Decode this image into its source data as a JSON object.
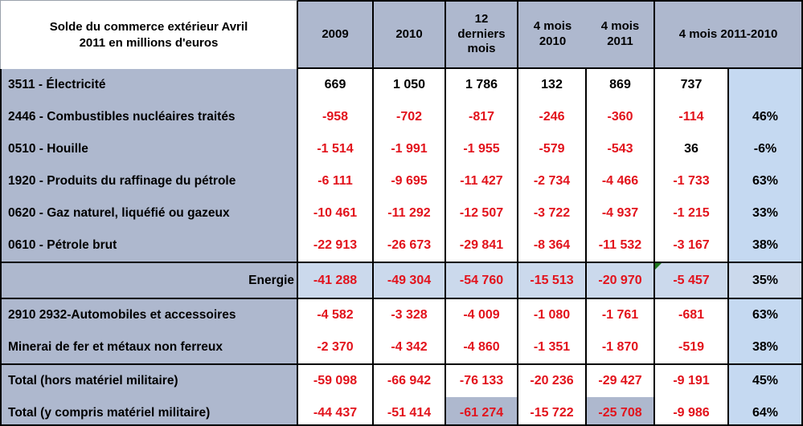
{
  "colors": {
    "label_fill": "#aeb8ce",
    "percent_fill": "#c5d9f1",
    "energy_fill": "#cbd9ec",
    "highlight_fill": "#aeb8ce",
    "negative": "#e2131c",
    "positive": "#000000",
    "marker_green": "#1f7a1f"
  },
  "table": {
    "title": "Solde du commerce extérieur Avril 2011 en millions d'euros",
    "col_headers": [
      "2009",
      "2010",
      "12 derniers mois",
      "4 mois 2010",
      "4 mois 2011",
      "4 mois 2011-2010"
    ],
    "rows": [
      {
        "label": "3511 - Électricité",
        "type": "product",
        "values": [
          "669",
          "1 050",
          "1 786",
          "132",
          "869",
          "737",
          ""
        ]
      },
      {
        "label": "2446 - Combustibles nucléaires traités",
        "type": "product",
        "values": [
          "-958",
          "-702",
          "-817",
          "-246",
          "-360",
          "-114",
          "46%"
        ]
      },
      {
        "label": "0510 - Houille",
        "type": "product",
        "values": [
          "-1 514",
          "-1 991",
          "-1 955",
          "-579",
          "-543",
          "36",
          "-6%"
        ]
      },
      {
        "label": "1920 - Produits du raffinage du pétrole",
        "type": "product",
        "values": [
          "-6 111",
          "-9 695",
          "-11 427",
          "-2 734",
          "-4 466",
          "-1 733",
          "63%"
        ]
      },
      {
        "label": "0620 - Gaz naturel, liquéfié ou gazeux",
        "type": "product",
        "values": [
          "-10 461",
          "-11 292",
          "-12 507",
          "-3 722",
          "-4 937",
          "-1 215",
          "33%"
        ]
      },
      {
        "label": "0610 - Pétrole brut",
        "type": "product",
        "values": [
          "-22 913",
          "-26 673",
          "-29 841",
          "-8 364",
          "-11 532",
          "-3 167",
          "38%"
        ]
      },
      {
        "label": "Energie",
        "type": "energy",
        "values": [
          "-41 288",
          "-49 304",
          "-54 760",
          "-15 513",
          "-20 970",
          "-5 457",
          "35%"
        ],
        "marker_cell": 5
      },
      {
        "label": "2910 2932-Automobiles et accessoires",
        "type": "product",
        "values": [
          "-4 582",
          "-3 328",
          "-4 009",
          "-1 080",
          "-1 761",
          "-681",
          "63%"
        ]
      },
      {
        "label": "Minerai de fer et métaux non ferreux",
        "type": "product",
        "values": [
          "-2 370",
          "-4 342",
          "-4 860",
          "-1 351",
          "-1 870",
          "-519",
          "38%"
        ]
      },
      {
        "label": "Total (hors matériel militaire)",
        "type": "total-first",
        "values": [
          "-59 098",
          "-66 942",
          "-76 133",
          "-20 236",
          "-29 427",
          "-9 191",
          "45%"
        ]
      },
      {
        "label": "Total (y compris matériel militaire)",
        "type": "total",
        "values": [
          "-44 437",
          "-51 414",
          "-61 274",
          "-15 722",
          "-25 708",
          "-9 986",
          "64%"
        ],
        "highlight_cells": [
          2,
          4
        ]
      }
    ]
  }
}
